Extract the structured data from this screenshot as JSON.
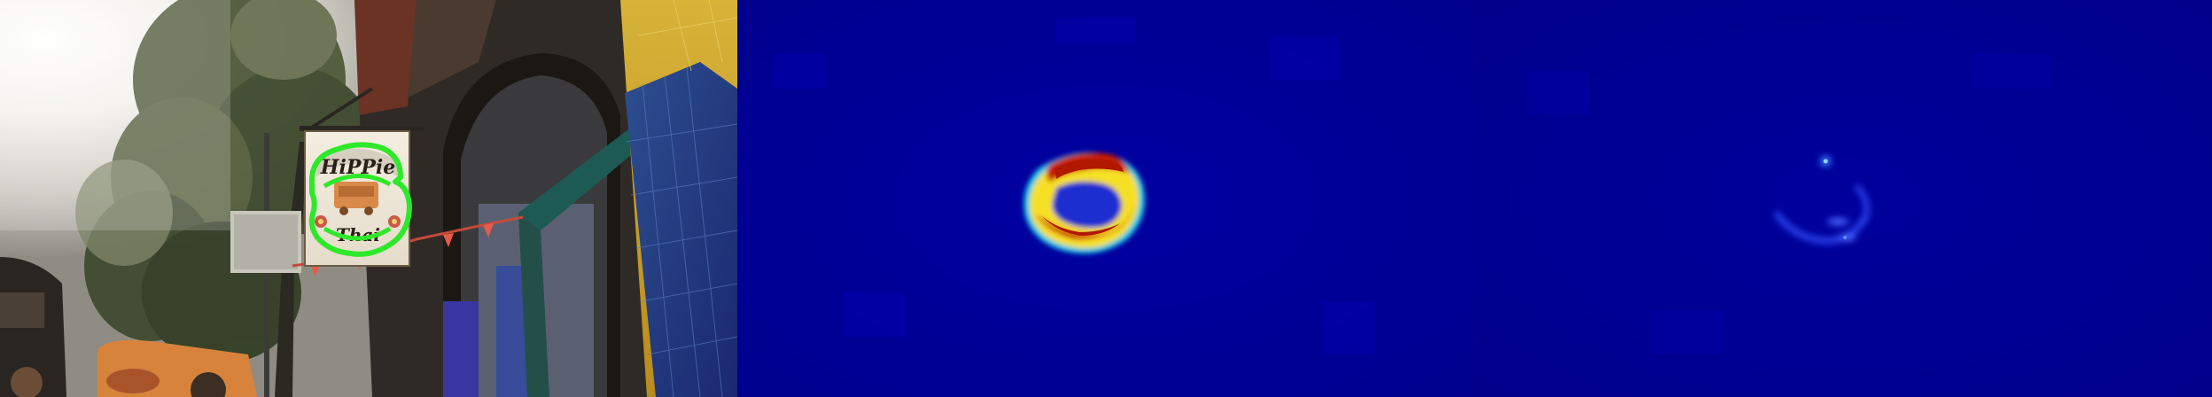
{
  "panels": [
    {
      "id": "photo",
      "kind": "street-photo-with-detection-overlay",
      "sign": {
        "line1": "HiPPie",
        "line2": "Thai",
        "outline_color": "#2ee82a"
      }
    },
    {
      "id": "heatmap-strong",
      "kind": "heatmap",
      "colormap": "jet"
    },
    {
      "id": "heatmap-weak",
      "kind": "heatmap",
      "colormap": "jet"
    }
  ],
  "colors": {
    "heatmap_background": "#00008f",
    "heatmap_hot": "#c81e00",
    "outline_green": "#2ee82a"
  }
}
